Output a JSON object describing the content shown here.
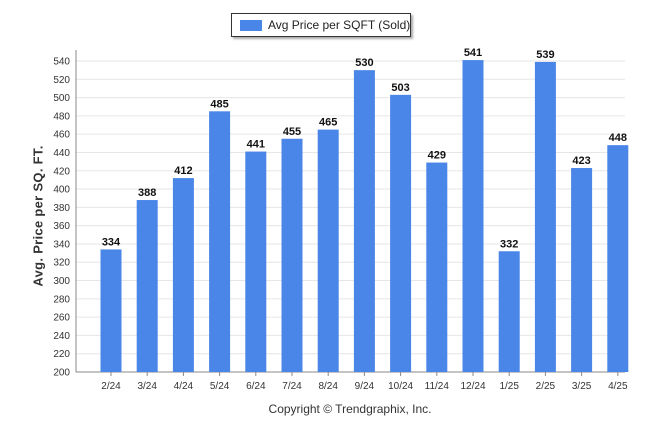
{
  "chart_data": {
    "type": "bar",
    "categories": [
      "2/24",
      "3/24",
      "4/24",
      "5/24",
      "6/24",
      "7/24",
      "8/24",
      "9/24",
      "10/24",
      "11/24",
      "12/24",
      "1/25",
      "2/25",
      "3/25",
      "4/25"
    ],
    "series": [
      {
        "name": "Avg Price per SQFT (Sold)",
        "values": [
          334,
          388,
          412,
          485,
          441,
          455,
          465,
          530,
          503,
          429,
          541,
          332,
          539,
          423,
          448
        ]
      }
    ],
    "ylabel": "Avg. Price per SQ. FT.",
    "xlabel": "",
    "ylim": [
      200,
      540
    ],
    "yticks": [
      200,
      220,
      240,
      260,
      280,
      300,
      320,
      340,
      360,
      380,
      400,
      420,
      440,
      460,
      480,
      500,
      520,
      540
    ],
    "grid": true,
    "legend_position": "top-center",
    "colors": {
      "bar": "#4a86e8",
      "grid": "#e6e6e6",
      "axis": "#888888"
    }
  },
  "footer": {
    "copyright": "Copyright © Trendgraphix, Inc."
  }
}
